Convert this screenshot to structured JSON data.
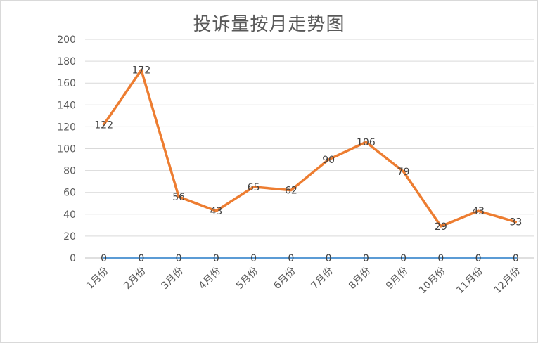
{
  "chart_data": {
    "type": "line",
    "title": "投诉量按月走势图",
    "xlabel": "",
    "ylabel": "",
    "ylim": [
      0,
      200
    ],
    "yticks": [
      0,
      20,
      40,
      60,
      80,
      100,
      120,
      140,
      160,
      180,
      200
    ],
    "categories": [
      "1月份",
      "2月份",
      "3月份",
      "4月份",
      "5月份",
      "6月份",
      "7月份",
      "8月份",
      "9月份",
      "10月份",
      "11月份",
      "12月份"
    ],
    "series": [
      {
        "values": [
          122,
          172,
          56,
          43,
          65,
          62,
          90,
          106,
          79,
          29,
          43,
          33
        ],
        "color": "#ed7d31"
      },
      {
        "values": [
          0,
          0,
          0,
          0,
          0,
          0,
          0,
          0,
          0,
          0,
          0,
          0
        ],
        "color": "#5b9bd5"
      }
    ],
    "grid": true,
    "legend": "none",
    "gridColor": "#d9d9d9",
    "axisColor": "#bfbfbf"
  }
}
